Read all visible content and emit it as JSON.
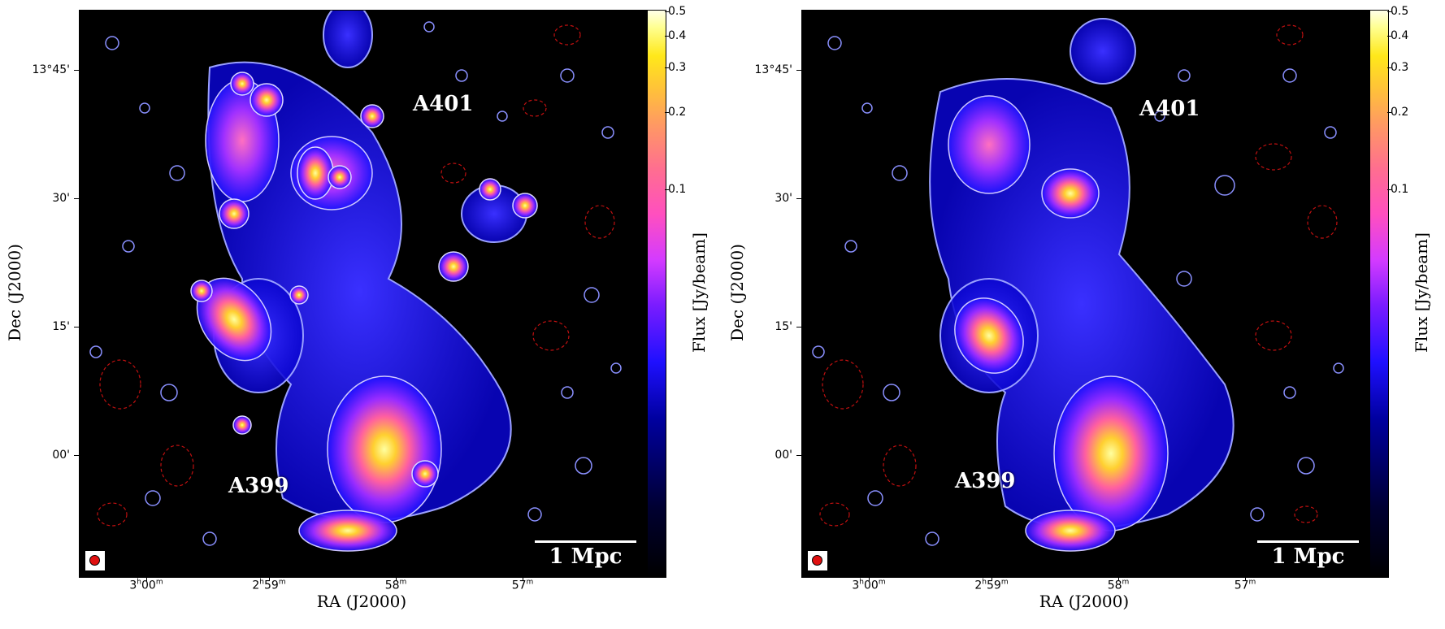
{
  "panels": [
    {
      "cluster_labels": [
        "A401",
        "A399"
      ],
      "scalebar_text": "1 Mpc",
      "ytick_labels": [
        "13°45'",
        "30'",
        "15'",
        "00'"
      ],
      "xtick_labels": [
        {
          "h": "3",
          "hu": "h",
          "m": "00",
          "mu": "m"
        },
        {
          "h": "2",
          "hu": "h",
          "m": "59",
          "mu": "m"
        },
        {
          "h": "",
          "hu": "",
          "m": "58",
          "mu": "m"
        },
        {
          "h": "",
          "hu": "",
          "m": "57",
          "mu": "m"
        }
      ],
      "colorbar_ticks": [
        "0.5",
        "0.4",
        "0.3",
        "0.2",
        "0.1"
      ],
      "ylabel": "Dec (J2000)",
      "xlabel": "RA (J2000)",
      "colorbar_label": "Flux [Jy/beam]"
    },
    {
      "cluster_labels": [
        "A401",
        "A399"
      ],
      "scalebar_text": "1 Mpc",
      "ytick_labels": [
        "13°45'",
        "30'",
        "15'",
        "00'"
      ],
      "xtick_labels": [
        {
          "h": "3",
          "hu": "h",
          "m": "00",
          "mu": "m"
        },
        {
          "h": "2",
          "hu": "h",
          "m": "59",
          "mu": "m"
        },
        {
          "h": "",
          "hu": "",
          "m": "58",
          "mu": "m"
        },
        {
          "h": "",
          "hu": "",
          "m": "57",
          "mu": "m"
        }
      ],
      "colorbar_ticks": [
        "0.5",
        "0.4",
        "0.3",
        "0.2",
        "0.1"
      ],
      "ylabel": "Dec (J2000)",
      "xlabel": "RA (J2000)",
      "colorbar_label": "Flux [Jy/beam]"
    }
  ]
}
